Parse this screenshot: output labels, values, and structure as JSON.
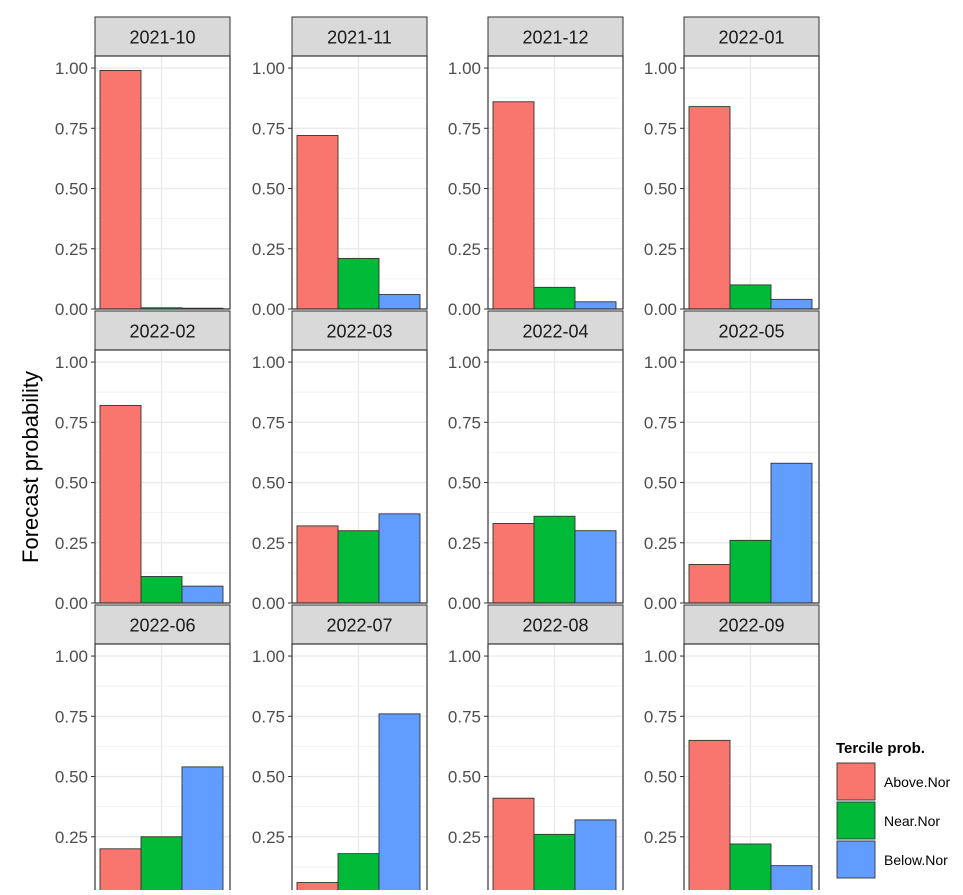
{
  "chart_data": {
    "type": "bar",
    "facet_layout": "4 columns x 3 rows",
    "ylabel": "Forecast probability",
    "xlabel": "",
    "ylim": [
      0,
      1.05
    ],
    "yticks": [
      "0.00",
      "0.25",
      "0.50",
      "0.75",
      "1.00"
    ],
    "grid": true,
    "legend": {
      "title": "Tercile prob.",
      "placement": "right-bottom",
      "entries": [
        "Above.Nor",
        "Near.Nor",
        "Below.Nor"
      ]
    },
    "categories": [
      "Above.Nor",
      "Near.Nor",
      "Below.Nor"
    ],
    "colors": [
      "#F8766D",
      "#00BA38",
      "#619CFF"
    ],
    "panels": [
      {
        "title": "2021-10",
        "values": [
          0.99,
          0.005,
          0.0
        ]
      },
      {
        "title": "2021-11",
        "values": [
          0.72,
          0.21,
          0.06
        ]
      },
      {
        "title": "2021-12",
        "values": [
          0.86,
          0.09,
          0.03
        ]
      },
      {
        "title": "2022-01",
        "values": [
          0.84,
          0.1,
          0.04
        ]
      },
      {
        "title": "2022-02",
        "values": [
          0.82,
          0.11,
          0.07
        ]
      },
      {
        "title": "2022-03",
        "values": [
          0.32,
          0.3,
          0.37
        ]
      },
      {
        "title": "2022-04",
        "values": [
          0.33,
          0.36,
          0.3
        ]
      },
      {
        "title": "2022-05",
        "values": [
          0.16,
          0.26,
          0.58
        ]
      },
      {
        "title": "2022-06",
        "values": [
          0.2,
          0.25,
          0.54
        ]
      },
      {
        "title": "2022-07",
        "values": [
          0.06,
          0.18,
          0.76
        ]
      },
      {
        "title": "2022-08",
        "values": [
          0.41,
          0.26,
          0.32
        ]
      },
      {
        "title": "2022-09",
        "values": [
          0.65,
          0.22,
          0.13
        ]
      }
    ]
  }
}
